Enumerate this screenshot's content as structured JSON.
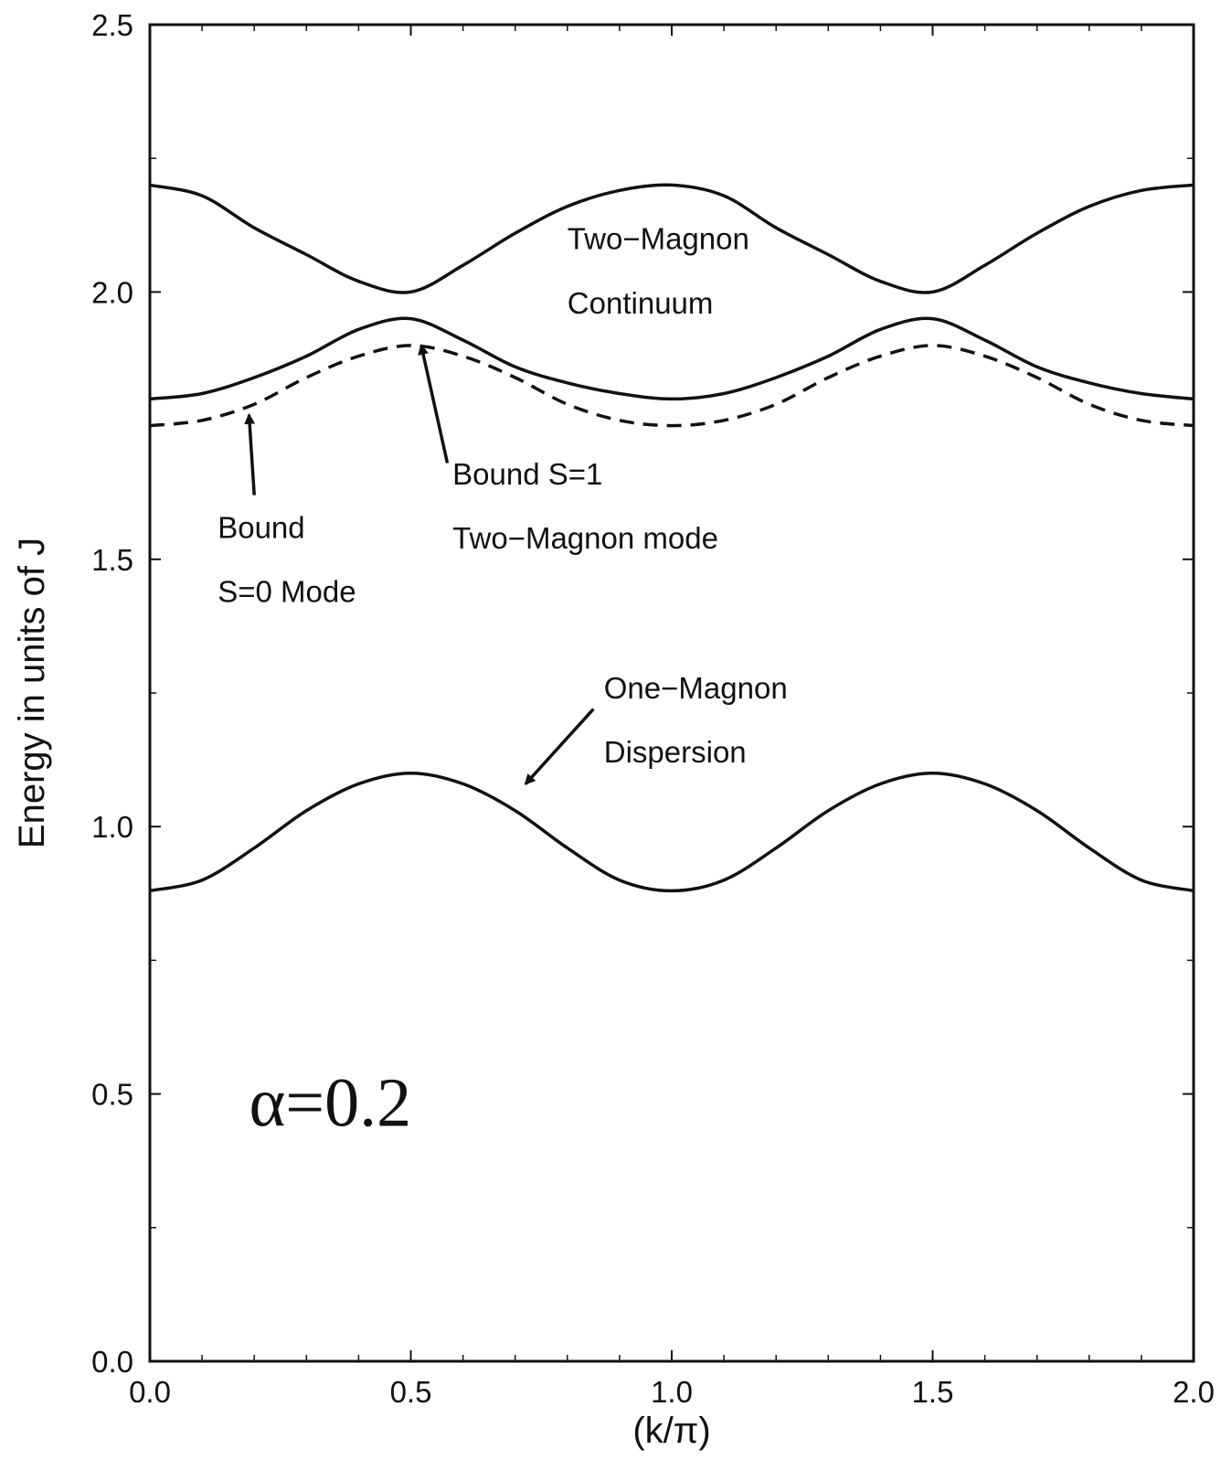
{
  "chart_data": {
    "type": "line",
    "title": "",
    "xlabel": "(k/π)",
    "ylabel": "Energy in units of J",
    "xlim": [
      0.0,
      2.0
    ],
    "ylim": [
      0.0,
      2.5
    ],
    "xticks": [
      "0.0",
      "0.5",
      "1.0",
      "1.5",
      "2.0"
    ],
    "yticks": [
      "0.0",
      "0.5",
      "1.0",
      "1.5",
      "2.0",
      "2.5"
    ],
    "grid": false,
    "series": [
      {
        "style": "solid",
        "points": [
          [
            0.0,
            0.88
          ],
          [
            0.1,
            0.9
          ],
          [
            0.2,
            0.96
          ],
          [
            0.3,
            1.03
          ],
          [
            0.4,
            1.08
          ],
          [
            0.5,
            1.1
          ],
          [
            0.6,
            1.08
          ],
          [
            0.7,
            1.03
          ],
          [
            0.8,
            0.96
          ],
          [
            0.9,
            0.9
          ],
          [
            1.0,
            0.88
          ],
          [
            1.1,
            0.9
          ],
          [
            1.2,
            0.96
          ],
          [
            1.3,
            1.03
          ],
          [
            1.4,
            1.08
          ],
          [
            1.5,
            1.1
          ],
          [
            1.6,
            1.08
          ],
          [
            1.7,
            1.03
          ],
          [
            1.8,
            0.96
          ],
          [
            1.9,
            0.9
          ],
          [
            2.0,
            0.88
          ]
        ]
      },
      {
        "style": "solid",
        "points": [
          [
            0.0,
            2.2
          ],
          [
            0.1,
            2.18
          ],
          [
            0.2,
            2.12
          ],
          [
            0.3,
            2.07
          ],
          [
            0.4,
            2.02
          ],
          [
            0.5,
            2.0
          ],
          [
            0.6,
            2.05
          ],
          [
            0.7,
            2.11
          ],
          [
            0.8,
            2.16
          ],
          [
            0.9,
            2.19
          ],
          [
            1.0,
            2.2
          ],
          [
            1.1,
            2.18
          ],
          [
            1.2,
            2.12
          ],
          [
            1.3,
            2.07
          ],
          [
            1.4,
            2.02
          ],
          [
            1.5,
            2.0
          ],
          [
            1.6,
            2.05
          ],
          [
            1.7,
            2.11
          ],
          [
            1.8,
            2.16
          ],
          [
            1.9,
            2.19
          ],
          [
            2.0,
            2.2
          ]
        ]
      },
      {
        "style": "solid",
        "points": [
          [
            0.0,
            1.8
          ],
          [
            0.1,
            1.81
          ],
          [
            0.2,
            1.84
          ],
          [
            0.3,
            1.88
          ],
          [
            0.4,
            1.93
          ],
          [
            0.5,
            1.95
          ],
          [
            0.6,
            1.91
          ],
          [
            0.7,
            1.86
          ],
          [
            0.8,
            1.83
          ],
          [
            0.9,
            1.81
          ],
          [
            1.0,
            1.8
          ],
          [
            1.1,
            1.81
          ],
          [
            1.2,
            1.84
          ],
          [
            1.3,
            1.88
          ],
          [
            1.4,
            1.93
          ],
          [
            1.5,
            1.95
          ],
          [
            1.6,
            1.91
          ],
          [
            1.7,
            1.86
          ],
          [
            1.8,
            1.83
          ],
          [
            1.9,
            1.81
          ],
          [
            2.0,
            1.8
          ]
        ]
      },
      {
        "style": "dashed",
        "points": [
          [
            0.0,
            1.75
          ],
          [
            0.1,
            1.76
          ],
          [
            0.2,
            1.79
          ],
          [
            0.3,
            1.84
          ],
          [
            0.4,
            1.88
          ],
          [
            0.5,
            1.9
          ],
          [
            0.6,
            1.88
          ],
          [
            0.7,
            1.84
          ],
          [
            0.8,
            1.79
          ],
          [
            0.9,
            1.76
          ],
          [
            1.0,
            1.75
          ],
          [
            1.1,
            1.76
          ],
          [
            1.2,
            1.79
          ],
          [
            1.3,
            1.84
          ],
          [
            1.4,
            1.88
          ],
          [
            1.5,
            1.9
          ],
          [
            1.6,
            1.88
          ],
          [
            1.7,
            1.84
          ],
          [
            1.8,
            1.79
          ],
          [
            1.9,
            1.76
          ],
          [
            2.0,
            1.75
          ]
        ]
      }
    ],
    "annotations": [
      {
        "id": "two-magnon-1",
        "text": "Two−Magnon",
        "x": 0.8,
        "y": 2.08
      },
      {
        "id": "two-magnon-2",
        "text": "Continuum",
        "x": 0.8,
        "y": 1.96
      },
      {
        "id": "bound-s1-1",
        "text": "Bound S=1",
        "x": 0.58,
        "y": 1.64
      },
      {
        "id": "bound-s1-2",
        "text": "Two−Magnon mode",
        "x": 0.58,
        "y": 1.52
      },
      {
        "id": "bound-s0-1",
        "text": "Bound",
        "x": 0.13,
        "y": 1.54
      },
      {
        "id": "bound-s0-2",
        "text": "S=0 Mode",
        "x": 0.13,
        "y": 1.42
      },
      {
        "id": "one-magnon-1",
        "text": "One−Magnon",
        "x": 0.87,
        "y": 1.24
      },
      {
        "id": "one-magnon-2",
        "text": "Dispersion",
        "x": 0.87,
        "y": 1.12
      },
      {
        "id": "alpha",
        "text": "α=0.2",
        "x": 0.19,
        "y": 0.44
      }
    ],
    "arrows": [
      {
        "from": [
          0.2,
          1.62
        ],
        "to": [
          0.19,
          1.77
        ]
      },
      {
        "from": [
          0.57,
          1.68
        ],
        "to": [
          0.52,
          1.9
        ]
      },
      {
        "from": [
          0.85,
          1.22
        ],
        "to": [
          0.72,
          1.08
        ]
      }
    ]
  }
}
